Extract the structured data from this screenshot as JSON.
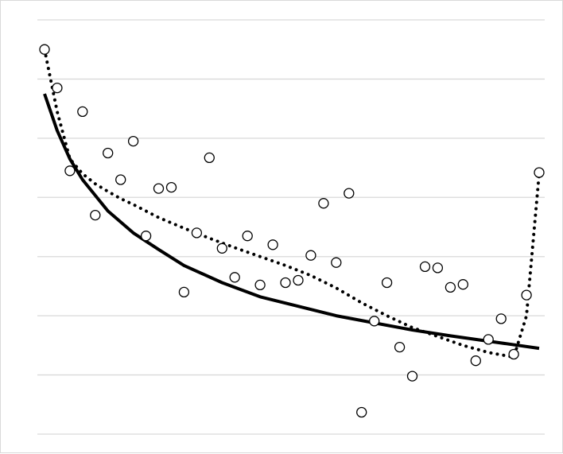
{
  "chart_data": {
    "type": "scatter",
    "title": "",
    "xlabel": "",
    "ylabel": "",
    "xlim": [
      1,
      40
    ],
    "ylim": [
      0,
      7
    ],
    "grid": "horizontal",
    "legend": "none",
    "colors": {
      "background": "#ffffff",
      "gridline": "#d9d9d9",
      "border": "#d9d9d9",
      "marker_stroke": "#000000",
      "marker_fill": "#ffffff",
      "trend_line": "#000000"
    },
    "series": [
      {
        "kind": "points",
        "marker": "open-circle",
        "x": [
          1,
          2,
          3,
          4,
          5,
          6,
          7,
          8,
          9,
          10,
          11,
          12,
          13,
          14,
          15,
          16,
          17,
          18,
          19,
          20,
          21,
          22,
          23,
          24,
          25,
          26,
          27,
          28,
          29,
          30,
          31,
          32,
          33,
          34,
          35,
          36,
          37,
          38,
          39,
          40
        ],
        "y": [
          6.5,
          5.85,
          4.45,
          5.45,
          3.7,
          4.75,
          4.3,
          4.95,
          3.35,
          4.15,
          4.17,
          2.4,
          3.4,
          4.67,
          3.14,
          2.65,
          3.35,
          2.52,
          3.2,
          2.56,
          2.6,
          3.02,
          3.9,
          2.9,
          4.07,
          0.37,
          1.91,
          2.56,
          1.47,
          0.98,
          2.83,
          2.81,
          2.48,
          2.53,
          1.24,
          1.6,
          1.95,
          1.35,
          2.35,
          4.42
        ]
      },
      {
        "kind": "solid-trendline",
        "x": [
          1,
          2,
          3,
          4,
          6,
          8,
          10,
          12,
          15,
          18,
          21,
          24,
          27,
          30,
          33,
          36,
          40
        ],
        "y": [
          5.75,
          5.13,
          4.65,
          4.3,
          3.77,
          3.4,
          3.12,
          2.85,
          2.56,
          2.32,
          2.16,
          2.0,
          1.88,
          1.76,
          1.66,
          1.57,
          1.45
        ]
      },
      {
        "kind": "dotted-trendline",
        "x": [
          1,
          2,
          3,
          4,
          5,
          6,
          7,
          8,
          10,
          12,
          14,
          16,
          18,
          20,
          22,
          24,
          26,
          28,
          30,
          32,
          34,
          36,
          38,
          39,
          40
        ],
        "y": [
          6.5,
          5.45,
          4.65,
          4.4,
          4.23,
          4.1,
          3.98,
          3.88,
          3.66,
          3.48,
          3.31,
          3.15,
          3.0,
          2.85,
          2.68,
          2.47,
          2.22,
          2.0,
          1.8,
          1.65,
          1.5,
          1.38,
          1.3,
          2.0,
          4.4
        ]
      }
    ]
  }
}
